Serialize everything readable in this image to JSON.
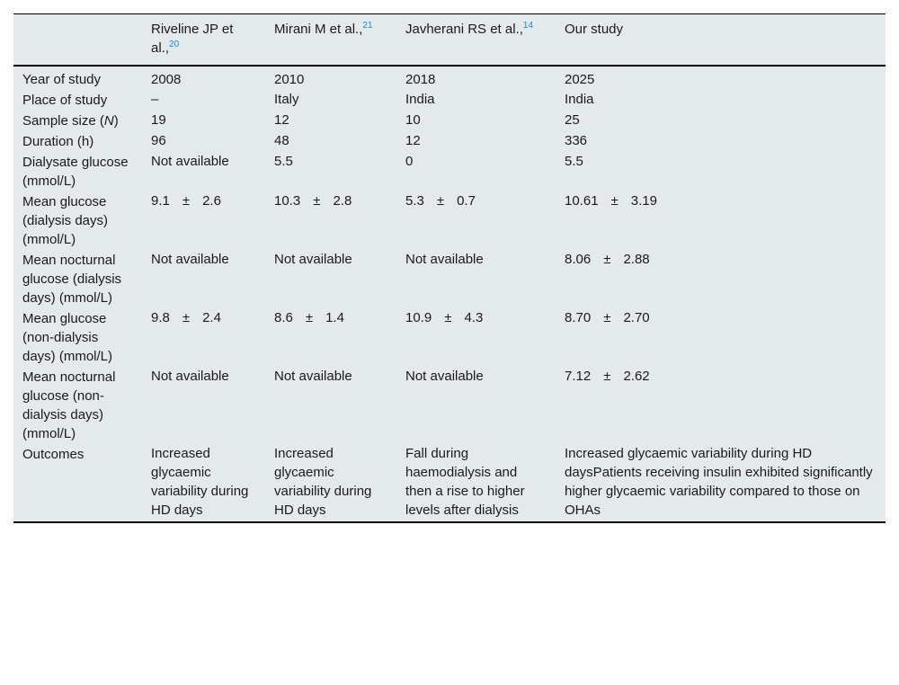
{
  "headers": [
    {
      "text": "",
      "sup": ""
    },
    {
      "text": "Riveline JP et al.,",
      "sup": "20"
    },
    {
      "text": "Mirani M et al.,",
      "sup": "21"
    },
    {
      "text": "Javherani RS et al.,",
      "sup": "14"
    },
    {
      "text": "Our study",
      "sup": ""
    }
  ],
  "rows": [
    {
      "label": "Year of study",
      "cells": [
        "2008",
        "2010",
        "2018",
        "2025"
      ]
    },
    {
      "label": "Place of study",
      "cells": [
        "–",
        "Italy",
        "India",
        "India"
      ]
    },
    {
      "label_pre": "Sample size (",
      "label_italic": "N",
      "label_post": ")",
      "cells": [
        "19",
        "12",
        "10",
        "25"
      ]
    },
    {
      "label": "Duration (h)",
      "cells": [
        "96",
        "48",
        "12",
        "336"
      ]
    },
    {
      "label": "Dialysate glucose (mmol/L)",
      "cells": [
        "Not available",
        "5.5",
        "0",
        "5.5"
      ]
    },
    {
      "label": "Mean glucose (dialysis days) (mmol/L)",
      "cells": [
        {
          "mean": "9.1",
          "pm": "±",
          "sd": "2.6"
        },
        {
          "mean": "10.3",
          "pm": "±",
          "sd": "2.8"
        },
        {
          "mean": "5.3",
          "pm": "±",
          "sd": "0.7"
        },
        {
          "mean": "10.61",
          "pm": "±",
          "sd": "3.19"
        }
      ]
    },
    {
      "label": "Mean nocturnal glucose (dialysis days) (mmol/L)",
      "cells": [
        "Not available",
        "Not available",
        "Not available",
        {
          "mean": "8.06",
          "pm": "±",
          "sd": "2.88"
        }
      ]
    },
    {
      "label": "Mean glucose (non-dialysis days) (mmol/L)",
      "cells": [
        {
          "mean": "9.8",
          "pm": "±",
          "sd": "2.4"
        },
        {
          "mean": "8.6",
          "pm": "±",
          "sd": "1.4"
        },
        {
          "mean": "10.9",
          "pm": "±",
          "sd": "4.3"
        },
        {
          "mean": "8.70",
          "pm": "±",
          "sd": "2.70"
        }
      ]
    },
    {
      "label": "Mean nocturnal glucose (non-dialysis days) (mmol/L)",
      "cells": [
        "Not available",
        "Not available",
        "Not available",
        {
          "mean": "7.12",
          "pm": "±",
          "sd": "2.62"
        }
      ]
    },
    {
      "label": "Outcomes",
      "cells": [
        "Increased glycaemic variability during HD days",
        "Increased glycaemic variability during HD days",
        "Fall during haemodialysis and then a rise to higher levels after dialysis",
        "Increased glycaemic variability during HD daysPatients receiving insulin exhibited significantly higher glycaemic variability compared to those on OHAs"
      ]
    }
  ],
  "colors": {
    "table_background": "#e4e9ec",
    "rule": "#000000",
    "reference_link": "#1a8ad6"
  }
}
